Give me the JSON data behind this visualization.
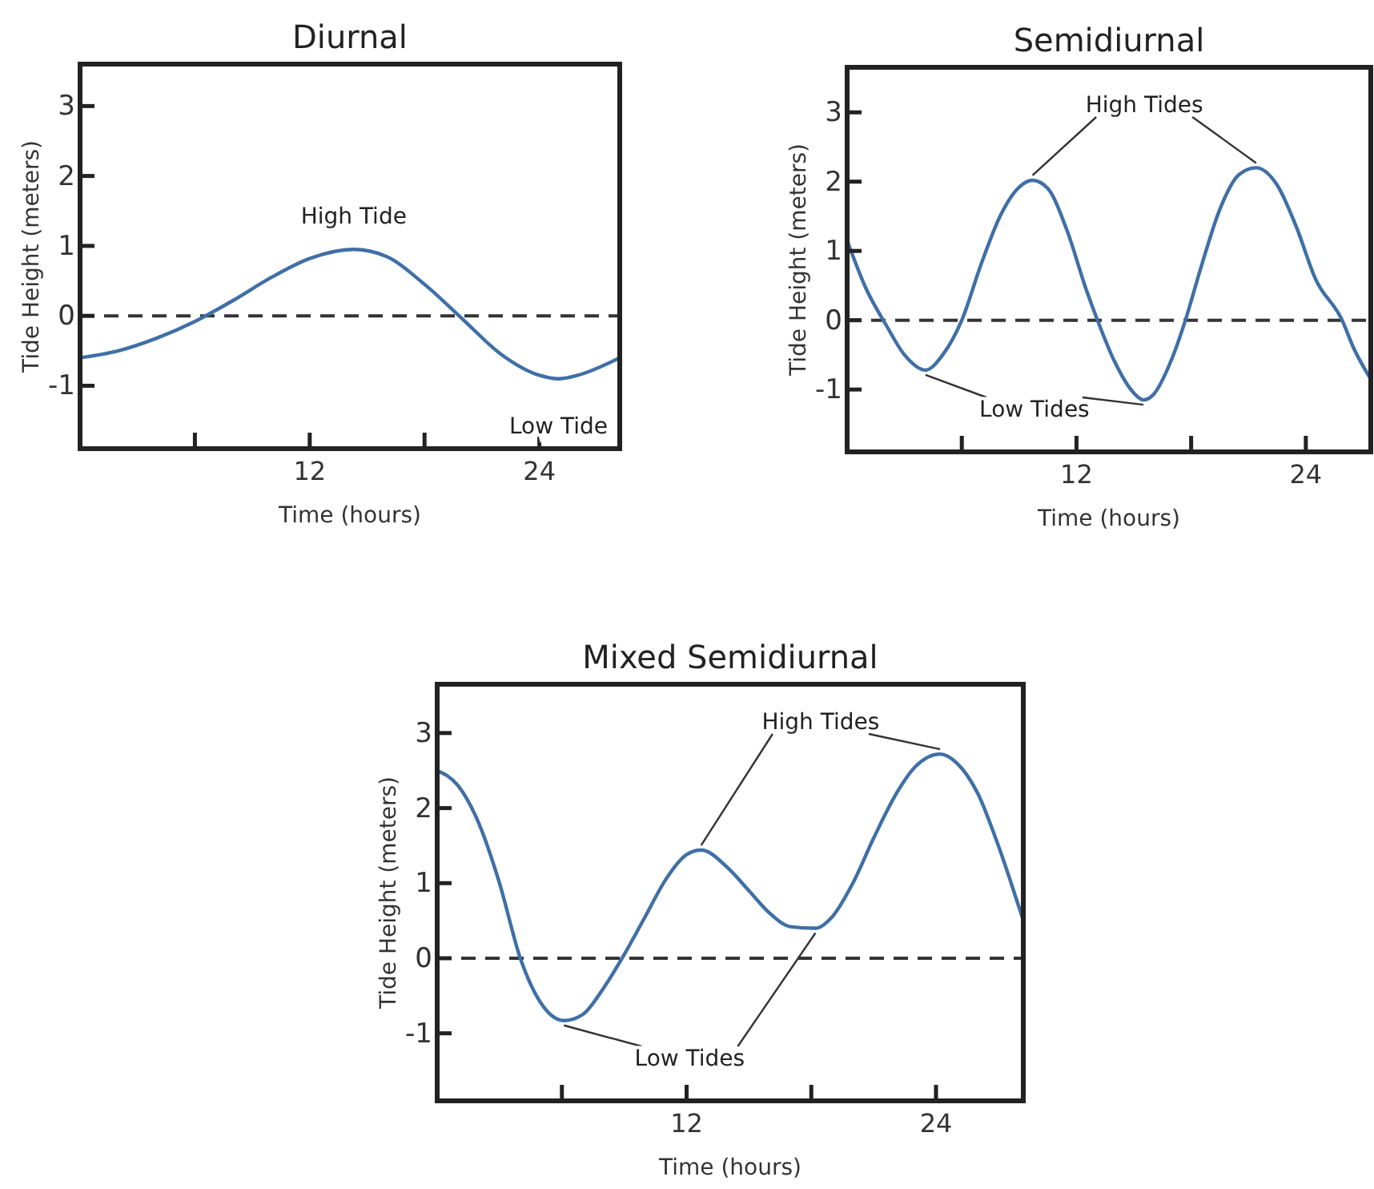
{
  "chart_data": [
    {
      "type": "line",
      "title": "Diurnal",
      "xlabel": "Time (hours)",
      "ylabel": "Tide Height (meters)",
      "xlim": [
        0,
        28.2
      ],
      "ylim": [
        -1.9,
        3.6
      ],
      "xticks": [
        {
          "value": 6,
          "label": null
        },
        {
          "value": 12,
          "label": "12"
        },
        {
          "value": 18,
          "label": null
        },
        {
          "value": 24,
          "label": "24"
        }
      ],
      "yticks": [
        -1,
        0,
        1,
        2,
        3
      ],
      "series": [
        {
          "color": "#3f6fa6",
          "x": [
            0,
            2,
            4,
            6,
            8,
            10,
            12,
            14.3,
            16,
            18,
            20,
            22,
            24,
            25,
            26,
            28.2
          ],
          "values": [
            -0.6,
            -0.5,
            -0.32,
            -0.08,
            0.22,
            0.55,
            0.82,
            0.95,
            0.85,
            0.45,
            -0.05,
            -0.55,
            -0.85,
            -0.9,
            -0.85,
            -0.6
          ]
        }
      ],
      "ref_lines": [
        {
          "axis": "y",
          "value": 0,
          "color": "#333333",
          "line_style": "dashed"
        }
      ],
      "annotations": [
        {
          "text": "High Tide",
          "x": 14.3,
          "y": 0.95
        },
        {
          "text": "Low Tide",
          "x": 25,
          "y": -0.9
        }
      ]
    },
    {
      "type": "line",
      "title": "Semidiurnal",
      "xlabel": "Time (hours)",
      "ylabel": "Tide Height (meters)",
      "xlim": [
        0,
        27.4
      ],
      "ylim": [
        -1.9,
        3.65
      ],
      "xticks": [
        {
          "value": 6,
          "label": null
        },
        {
          "value": 12,
          "label": "12"
        },
        {
          "value": 18,
          "label": null
        },
        {
          "value": 24,
          "label": "24"
        }
      ],
      "yticks": [
        -1,
        0,
        1,
        2,
        3
      ],
      "series": [
        {
          "color": "#3f6fa6",
          "x": [
            0,
            1,
            2,
            3,
            4.1,
            5,
            6,
            7,
            8,
            9,
            9.7,
            10.5,
            11.5,
            12.5,
            13.1,
            14,
            15,
            15.5,
            16,
            17,
            17.7,
            18.5,
            19.5,
            20.5,
            21.4,
            22.5,
            23.5,
            24.5,
            25.9,
            26.5,
            27.4
          ],
          "values": [
            1.15,
            0.45,
            -0.05,
            -0.5,
            -0.72,
            -0.5,
            0,
            0.8,
            1.5,
            1.92,
            2.02,
            1.9,
            1.3,
            0.45,
            0,
            -0.6,
            -1.05,
            -1.15,
            -1.08,
            -0.55,
            0,
            0.75,
            1.6,
            2.1,
            2.2,
            1.95,
            1.35,
            0.6,
            0,
            -0.4,
            -0.85
          ]
        }
      ],
      "ref_lines": [
        {
          "axis": "y",
          "value": 0,
          "color": "#333333",
          "line_style": "dashed"
        }
      ],
      "annotations": [
        {
          "text": "High Tides",
          "x": 9.7,
          "y": 2.02
        },
        {
          "text": "Low Tides",
          "x": 4.1,
          "y": -0.72
        }
      ]
    },
    {
      "type": "line",
      "title": "Mixed Semidiurnal",
      "xlabel": "Time (hours)",
      "ylabel": "Tide Height (meters)",
      "xlim": [
        0,
        28.2
      ],
      "ylim": [
        -1.9,
        3.65
      ],
      "xticks": [
        {
          "value": 6,
          "label": null
        },
        {
          "value": 12,
          "label": "12"
        },
        {
          "value": 18,
          "label": null
        },
        {
          "value": 24,
          "label": "24"
        }
      ],
      "yticks": [
        -1,
        0,
        1,
        2,
        3
      ],
      "series": [
        {
          "color": "#3f6fa6",
          "x": [
            0,
            1,
            2,
            3,
            4,
            5,
            6.1,
            7,
            8,
            9,
            10,
            11,
            12,
            12.7,
            14,
            15,
            16,
            17,
            18.2,
            19,
            20,
            21,
            22,
            23,
            24.2,
            25,
            26,
            27,
            28.2
          ],
          "values": [
            2.5,
            2.3,
            1.8,
            1.0,
            0,
            -0.6,
            -0.83,
            -0.75,
            -0.4,
            0.05,
            0.55,
            1.05,
            1.38,
            1.44,
            1.2,
            0.9,
            0.6,
            0.42,
            0.4,
            0.55,
            1.0,
            1.6,
            2.15,
            2.55,
            2.72,
            2.6,
            2.2,
            1.5,
            0.5
          ]
        }
      ],
      "ref_lines": [
        {
          "axis": "y",
          "value": 0,
          "color": "#333333",
          "line_style": "dashed"
        }
      ],
      "annotations": [
        {
          "text": "High Tides",
          "x": 12.7,
          "y": 1.44
        },
        {
          "text": "Low Tides",
          "x": 6.1,
          "y": -0.83
        }
      ]
    }
  ]
}
